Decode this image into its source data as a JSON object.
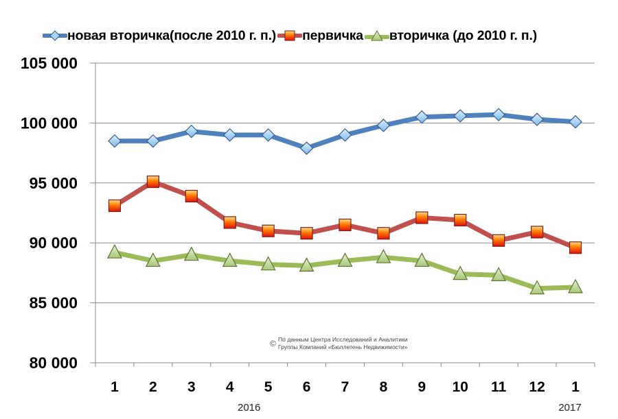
{
  "chart_data": {
    "type": "line",
    "title": "",
    "xlabel": "",
    "ylabel": "",
    "categories": [
      "1",
      "2",
      "3",
      "4",
      "5",
      "6",
      "7",
      "8",
      "9",
      "10",
      "11",
      "12",
      "1"
    ],
    "year_labels": [
      {
        "label": "2016",
        "under_category_index": 3.5
      },
      {
        "label": "2017",
        "under_category_index": 12
      }
    ],
    "ylim": [
      80000,
      105000
    ],
    "yticks": [
      80000,
      85000,
      90000,
      95000,
      100000,
      105000
    ],
    "ytick_labels": [
      "80 000",
      "85 000",
      "90 000",
      "95 000",
      "100 000",
      "105 000"
    ],
    "grid": true,
    "legend_position": "top",
    "series": [
      {
        "name": "новая вторичка(после 2010 г. п.)",
        "color": "#4F81BD",
        "marker": "diamond",
        "marker_fill": "#A8D4F7",
        "values": [
          98500,
          98500,
          99300,
          99000,
          99000,
          97900,
          99000,
          99800,
          100500,
          100600,
          100700,
          100300,
          100100
        ]
      },
      {
        "name": "первичка",
        "color": "#C0504D",
        "marker": "square",
        "marker_fill": "#FF4A00",
        "values": [
          93100,
          95100,
          93900,
          91700,
          91000,
          90800,
          91500,
          90800,
          92100,
          91900,
          90200,
          90900,
          89600
        ]
      },
      {
        "name": "вторичка (до 2010 г. п.)",
        "color": "#9BBB59",
        "marker": "triangle",
        "marker_fill": "#C6DCA4",
        "values": [
          89200,
          88500,
          89000,
          88500,
          88200,
          88100,
          88500,
          88800,
          88500,
          87400,
          87300,
          86200,
          86300
        ]
      }
    ],
    "annotation": {
      "symbol": "©",
      "lines": [
        "По данным Центра Исследований и Аналитики",
        "Группы Компаний «Бюллетень Недвижимости»"
      ]
    }
  }
}
